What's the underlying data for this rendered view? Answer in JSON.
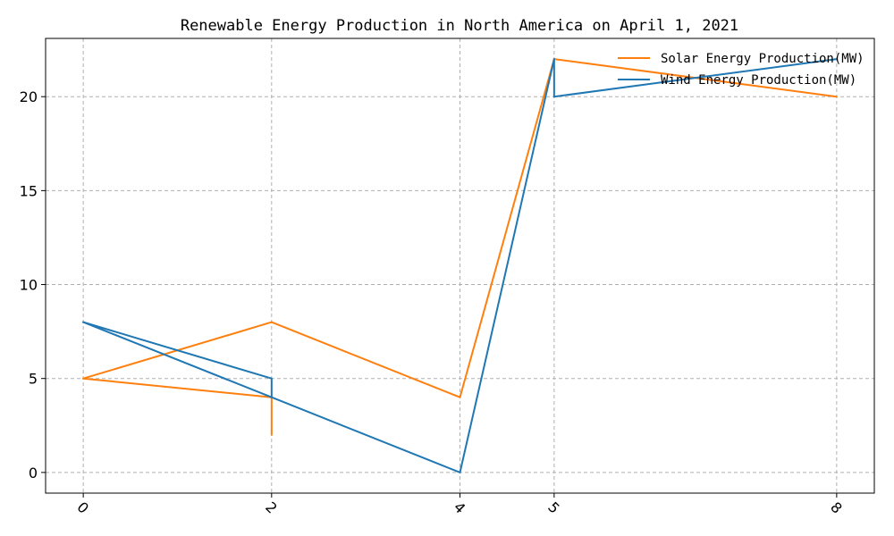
{
  "chart_data": {
    "type": "line",
    "title": "Renewable Energy Production in North America on April 1, 2021",
    "xlabel": "",
    "ylabel": "",
    "x_ticks": [
      "0",
      "2",
      "4",
      "5",
      "8"
    ],
    "y_ticks": [
      "0",
      "5",
      "10",
      "15",
      "20"
    ],
    "xlim": [
      -0.4,
      8.4
    ],
    "ylim": [
      -1.1,
      23.1
    ],
    "grid": true,
    "legend_position": "top-right",
    "series": [
      {
        "name": "Solar Energy Production(MW)",
        "color": "#ff7f0e",
        "x": [
          0,
          2,
          2,
          2,
          4,
          5,
          5,
          8
        ],
        "y": [
          5,
          8,
          4,
          2,
          4,
          22,
          22,
          20
        ]
      },
      {
        "name": "Wind Energy Production(MW)",
        "color": "#1f77b4",
        "x": [
          0,
          2,
          2,
          0,
          2,
          4,
          5,
          5,
          8
        ],
        "y": [
          8,
          4,
          5,
          8,
          4,
          0,
          22,
          20,
          22
        ]
      }
    ],
    "segments": [
      {
        "series": 0,
        "from": [
          0,
          5
        ],
        "to": [
          2,
          8
        ]
      },
      {
        "series": 0,
        "from": [
          2,
          8
        ],
        "to": [
          4,
          4
        ]
      },
      {
        "series": 0,
        "from": [
          4,
          4
        ],
        "to": [
          5,
          22
        ]
      },
      {
        "series": 0,
        "from": [
          5,
          22
        ],
        "to": [
          8,
          20
        ]
      },
      {
        "series": 0,
        "from": [
          0,
          5
        ],
        "to": [
          2,
          4
        ]
      },
      {
        "series": 0,
        "from": [
          2,
          4
        ],
        "to": [
          2,
          2
        ]
      },
      {
        "series": 1,
        "from": [
          0,
          8
        ],
        "to": [
          2,
          5
        ]
      },
      {
        "series": 1,
        "from": [
          2,
          5
        ],
        "to": [
          2,
          4
        ]
      },
      {
        "series": 1,
        "from": [
          0,
          8
        ],
        "to": [
          2,
          4
        ]
      },
      {
        "series": 1,
        "from": [
          2,
          4
        ],
        "to": [
          4,
          0
        ]
      },
      {
        "series": 1,
        "from": [
          4,
          0
        ],
        "to": [
          5,
          22
        ]
      },
      {
        "series": 1,
        "from": [
          5,
          22
        ],
        "to": [
          5,
          20
        ]
      },
      {
        "series": 1,
        "from": [
          5,
          20
        ],
        "to": [
          8,
          22
        ]
      }
    ]
  }
}
